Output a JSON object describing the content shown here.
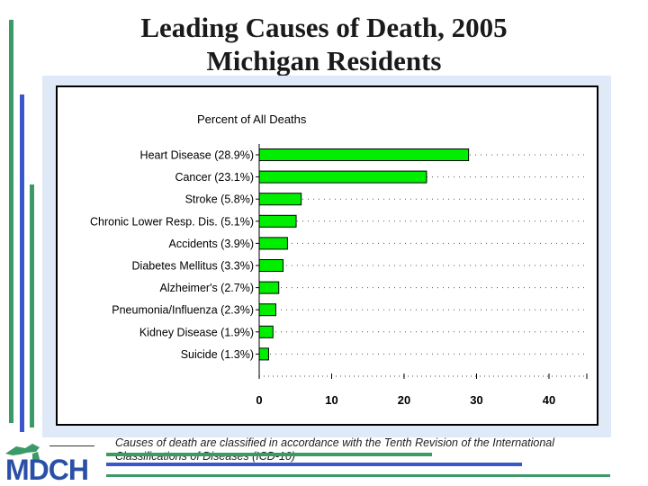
{
  "slide": {
    "title_line1": "Leading Causes of Death, 2005",
    "title_line2": "Michigan Residents",
    "caption": "Causes of death are classified in accordance with the Tenth Revision of the International Classifications of Diseases (ICD-10)",
    "logo_text": "MDCH"
  },
  "colors": {
    "bar_fill": "#00ee00",
    "accent_green": "#3b9a67",
    "accent_blue": "#3a57c9"
  },
  "chart_data": {
    "type": "bar",
    "orientation": "horizontal",
    "title": "Percent of All Deaths",
    "xlabel": "",
    "ylabel": "",
    "categories": [
      "Heart Disease (28.9%)",
      "Cancer (23.1%)",
      "Stroke (5.8%)",
      "Chronic Lower Resp. Dis. (5.1%)",
      "Accidents (3.9%)",
      "Diabetes Mellitus (3.3%)",
      "Alzheimer's (2.7%)",
      "Pneumonia/Influenza (2.3%)",
      "Kidney Disease (1.9%)",
      "Suicide (1.3%)"
    ],
    "values": [
      28.9,
      23.1,
      5.8,
      5.1,
      3.9,
      3.3,
      2.7,
      2.3,
      1.9,
      1.3
    ],
    "xlim": [
      0,
      45
    ],
    "xticks": [
      0,
      10,
      20,
      30,
      40
    ],
    "grid": "dotted"
  }
}
